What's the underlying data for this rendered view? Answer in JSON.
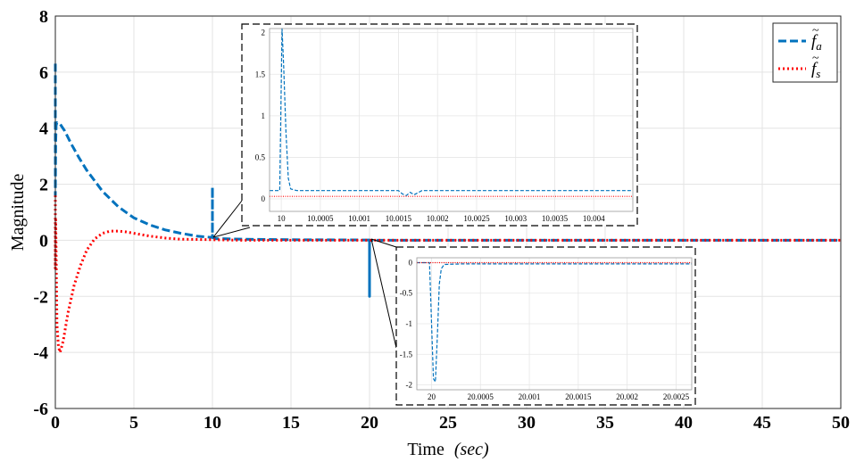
{
  "chart_data": [
    {
      "type": "line",
      "title": "",
      "xlabel": "Time",
      "xlabel_unit": "(sec)",
      "ylabel": "Magnitude",
      "xlim": [
        0,
        50
      ],
      "ylim": [
        -6,
        8
      ],
      "xticks": [
        0,
        5,
        10,
        15,
        20,
        25,
        30,
        35,
        40,
        45,
        50
      ],
      "yticks": [
        -6,
        -4,
        -2,
        0,
        2,
        4,
        6,
        8
      ],
      "grid": true,
      "legend_position": "top-right",
      "series": [
        {
          "name": "f̃a",
          "name_base": "f",
          "name_sub": "a",
          "color": "#0072BD",
          "style": "dashed",
          "x": [
            0,
            0,
            0.02,
            0.05,
            0.1,
            0.3,
            0.6,
            1,
            1.5,
            2,
            3,
            4,
            5,
            6,
            7,
            8,
            9,
            10,
            10,
            10,
            10,
            10.2,
            12,
            15,
            20,
            20,
            20,
            20.2,
            25,
            30,
            40,
            50
          ],
          "y": [
            6.3,
            1.6,
            3.5,
            4.1,
            4.2,
            4.15,
            3.9,
            3.45,
            2.95,
            2.5,
            1.75,
            1.2,
            0.8,
            0.55,
            0.37,
            0.25,
            0.15,
            0.1,
            1.9,
            0.1,
            0.1,
            0.06,
            0.04,
            0.02,
            0.01,
            -2.0,
            0.0,
            0.0,
            0.0,
            0.0,
            0.0,
            0.0
          ]
        },
        {
          "name": "f̃s",
          "name_base": "f",
          "name_sub": "s",
          "color": "#ff0000",
          "style": "dotted",
          "x": [
            0,
            0,
            0.02,
            0.05,
            0.1,
            0.2,
            0.3,
            0.5,
            0.8,
            1.2,
            1.6,
            2,
            2.5,
            3,
            3.5,
            4,
            4.5,
            5,
            6,
            7,
            8,
            10,
            12,
            15,
            20,
            30,
            50
          ],
          "y": [
            1.6,
            -1.0,
            0.8,
            -0.5,
            -3.0,
            -3.8,
            -4.0,
            -3.6,
            -2.6,
            -1.6,
            -0.9,
            -0.35,
            0.05,
            0.25,
            0.33,
            0.33,
            0.3,
            0.25,
            0.15,
            0.08,
            0.04,
            0.02,
            0.0,
            0.0,
            0.0,
            0.0,
            0.0
          ]
        }
      ]
    },
    {
      "type": "line",
      "title": "",
      "xlim": [
        9.99985,
        10.0045
      ],
      "ylim": [
        -0.15,
        2.05
      ],
      "xtick_labels": [
        "10",
        "10.0005",
        "10.001",
        "10.0015",
        "10.002",
        "10.0025",
        "10.003",
        "10.0035",
        "10.004"
      ],
      "xtick_values": [
        10,
        10.0005,
        10.001,
        10.0015,
        10.002,
        10.0025,
        10.003,
        10.0035,
        10.004
      ],
      "ytick_labels": [
        "0",
        "0.5",
        "1",
        "1.5",
        "2"
      ],
      "ytick_values": [
        0,
        0.5,
        1,
        1.5,
        2
      ],
      "grid": true,
      "series": [
        {
          "name": "f̃a",
          "color": "#0072BD",
          "style": "dashed",
          "x": [
            9.99985,
            9.99998,
            10.00001,
            10.00003,
            10.00006,
            10.00009,
            10.00012,
            10.0002,
            10.0005,
            10.001,
            10.0013,
            10.0015,
            10.00155,
            10.0016,
            10.00165,
            10.0017,
            10.0018,
            10.002,
            10.003,
            10.004,
            10.0045
          ],
          "y": [
            0.1,
            0.1,
            2.05,
            1.6,
            0.8,
            0.25,
            0.12,
            0.1,
            0.1,
            0.1,
            0.1,
            0.1,
            0.06,
            0.04,
            0.08,
            0.05,
            0.1,
            0.1,
            0.1,
            0.1,
            0.1
          ]
        },
        {
          "name": "f̃s",
          "color": "#ff0000",
          "style": "dotted",
          "x": [
            9.99985,
            10.0045
          ],
          "y": [
            0.03,
            0.03
          ]
        }
      ]
    },
    {
      "type": "line",
      "title": "",
      "xlim": [
        19.99985,
        20.00266
      ],
      "ylim": [
        -2.08,
        0.08
      ],
      "xtick_labels": [
        "20",
        "20.0005",
        "20.001",
        "20.0015",
        "20.002",
        "20.0025"
      ],
      "xtick_values": [
        20,
        20.0005,
        20.001,
        20.0015,
        20.002,
        20.0025
      ],
      "ytick_labels": [
        "0",
        "-0.5",
        "-1",
        "-1.5",
        "-2"
      ],
      "ytick_values": [
        0,
        -0.5,
        -1,
        -1.5,
        -2
      ],
      "grid": true,
      "series": [
        {
          "name": "f̃a",
          "color": "#0072BD",
          "style": "dashed",
          "x": [
            19.99985,
            19.99998,
            20.00002,
            20.00004,
            20.00006,
            20.00008,
            20.0001,
            20.00013,
            20.0003,
            20.0008,
            20.001,
            20.0015,
            20.002,
            20.00266
          ],
          "y": [
            0.0,
            0.0,
            -1.9,
            -1.95,
            -1.2,
            -0.35,
            -0.1,
            -0.03,
            -0.02,
            -0.02,
            -0.02,
            -0.02,
            -0.02,
            -0.02
          ]
        },
        {
          "name": "f̃s",
          "color": "#ff0000",
          "style": "dotted",
          "x": [
            19.99985,
            20.00266
          ],
          "y": [
            0.0,
            0.0
          ]
        }
      ]
    }
  ]
}
